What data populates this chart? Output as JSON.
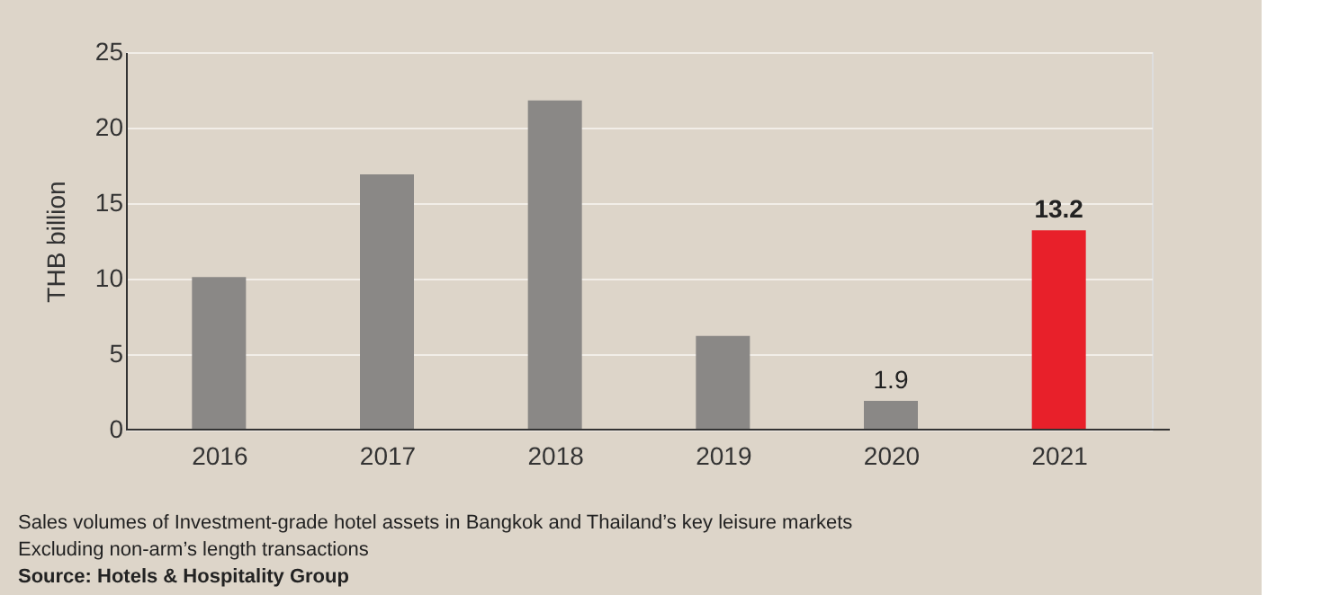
{
  "chart_data": {
    "type": "bar",
    "categories": [
      "2016",
      "2017",
      "2018",
      "2019",
      "2020",
      "2021"
    ],
    "values": [
      10.1,
      16.9,
      21.8,
      6.2,
      1.9,
      13.2
    ],
    "colors": [
      "#8a8886",
      "#8a8886",
      "#8a8886",
      "#8a8886",
      "#8a8886",
      "#e8202a"
    ],
    "value_labels": [
      null,
      null,
      null,
      null,
      "1.9",
      "13.2"
    ],
    "ylabel": "THB billion",
    "ylim": [
      0,
      25
    ],
    "yticks": [
      0,
      5,
      10,
      15,
      20,
      25
    ],
    "grid": "y",
    "annotations": [
      "Sales volumes of Investment-grade hotel assets in Bangkok and Thailand’s key leisure markets",
      "Excluding non-arm’s length transactions",
      "Source: Hotels & Hospitality Group"
    ]
  }
}
